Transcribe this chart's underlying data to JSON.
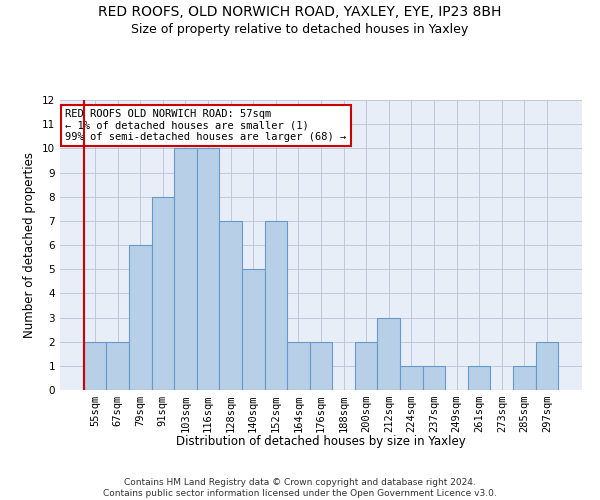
{
  "title": "RED ROOFS, OLD NORWICH ROAD, YAXLEY, EYE, IP23 8BH",
  "subtitle": "Size of property relative to detached houses in Yaxley",
  "xlabel": "Distribution of detached houses by size in Yaxley",
  "ylabel": "Number of detached properties",
  "categories": [
    "55sqm",
    "67sqm",
    "79sqm",
    "91sqm",
    "103sqm",
    "116sqm",
    "128sqm",
    "140sqm",
    "152sqm",
    "164sqm",
    "176sqm",
    "188sqm",
    "200sqm",
    "212sqm",
    "224sqm",
    "237sqm",
    "249sqm",
    "261sqm",
    "273sqm",
    "285sqm",
    "297sqm"
  ],
  "values": [
    2,
    2,
    6,
    8,
    10,
    10,
    7,
    5,
    7,
    2,
    2,
    0,
    2,
    3,
    1,
    1,
    0,
    1,
    0,
    1,
    2
  ],
  "bar_color": "#b8cfe8",
  "bar_edge_color": "#6699cc",
  "highlight_color": "#cc0000",
  "annotation_text": "RED ROOFS OLD NORWICH ROAD: 57sqm\n← 1% of detached houses are smaller (1)\n99% of semi-detached houses are larger (68) →",
  "annotation_box_color": "#ffffff",
  "annotation_box_edge_color": "#cc0000",
  "ylim": [
    0,
    12
  ],
  "yticks": [
    0,
    1,
    2,
    3,
    4,
    5,
    6,
    7,
    8,
    9,
    10,
    11,
    12
  ],
  "footer": "Contains HM Land Registry data © Crown copyright and database right 2024.\nContains public sector information licensed under the Open Government Licence v3.0.",
  "bg_color": "#ffffff",
  "plot_bg_color": "#e8eef8",
  "grid_color": "#c0c8d8",
  "title_fontsize": 10,
  "subtitle_fontsize": 9,
  "axis_label_fontsize": 8.5,
  "tick_fontsize": 7.5,
  "annotation_fontsize": 7.5,
  "footer_fontsize": 6.5
}
